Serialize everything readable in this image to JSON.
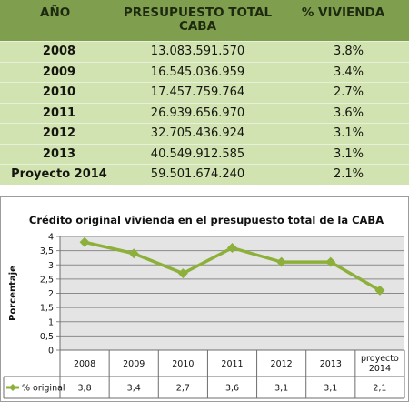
{
  "table": {
    "headers": {
      "year": "AÑO",
      "total": "PRESUPUESTO TOTAL CABA",
      "pct": "% VIVIENDA"
    },
    "rows": [
      {
        "year": "2008",
        "total": "13.083.591.570",
        "pct": "3.8%"
      },
      {
        "year": "2009",
        "total": "16.545.036.959",
        "pct": "3.4%"
      },
      {
        "year": "2010",
        "total": "17.457.759.764",
        "pct": "2.7%"
      },
      {
        "year": "2011",
        "total": "26.939.656.970",
        "pct": "3.6%"
      },
      {
        "year": "2012",
        "total": "32.705.436.924",
        "pct": "3.1%"
      },
      {
        "year": "2013",
        "total": "40.549.912.585",
        "pct": "3.1%"
      },
      {
        "year": "Proyecto 2014",
        "total": "59.501.674.240",
        "pct": "2.1%"
      }
    ]
  },
  "chart_data": {
    "type": "line",
    "title": "Crédito original vivienda en el presupuesto total de la CABA",
    "xlabel": "",
    "ylabel": "Porcentaje",
    "categories": [
      "2008",
      "2009",
      "2010",
      "2011",
      "2012",
      "2013",
      "proyecto 2014"
    ],
    "series": [
      {
        "name": "% original",
        "values": [
          3.8,
          3.4,
          2.7,
          3.6,
          3.1,
          3.1,
          2.1
        ],
        "value_labels": [
          "3,8",
          "3,4",
          "2,7",
          "3,6",
          "3,1",
          "3,1",
          "2,1"
        ]
      }
    ],
    "ylim": [
      0,
      4
    ],
    "yticks": [
      "0",
      "0,5",
      "1",
      "1,5",
      "2",
      "2,5",
      "3",
      "3,5",
      "4"
    ],
    "grid": true,
    "legend": "data-table-below",
    "colors": {
      "line": "#8db03a",
      "grid": "#8a8a8a",
      "plot_bg": "#e4e4e4"
    }
  }
}
